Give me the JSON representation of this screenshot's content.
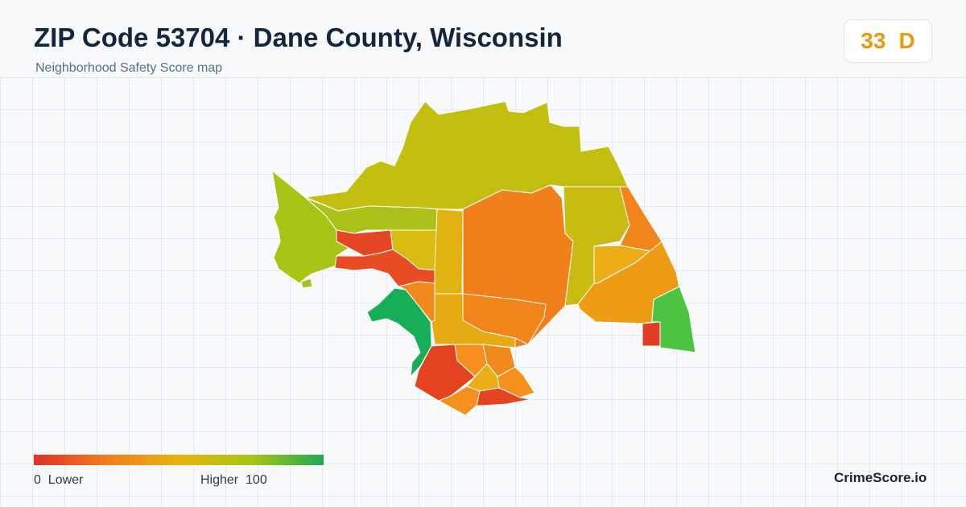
{
  "header": {
    "title": "ZIP Code 53704 · Dane County, Wisconsin",
    "subtitle": "Neighborhood Safety Score map"
  },
  "score": {
    "value": "33",
    "grade": "D",
    "color": "#e69b12"
  },
  "legend": {
    "low_value": "0",
    "low_label": "Lower",
    "high_label": "Higher",
    "high_value": "100",
    "colors": [
      "#e03127",
      "#f17d1c",
      "#e7b312",
      "#a9c414",
      "#1eab55"
    ]
  },
  "brand": "CrimeScore.io",
  "map": {
    "area_colors": {
      "north": "#c2bf10",
      "northwest": "#a8c416",
      "nw_strip": "#acc21a",
      "nw_small": "#9fc41e",
      "west_red": "#e54624",
      "west_mid": "#d9bb12",
      "center_yellow": "#e1b210",
      "central_orange": "#f17f1a",
      "east_yellow": "#c9bb12",
      "east_orange": "#f2841c",
      "east_light": "#ebae16",
      "east_lower": "#ef9c15",
      "southeast_green": "#4cc443",
      "southeast_red": "#e33c26",
      "lake_red": "#e84c22",
      "park_green": "#17ae58",
      "south_orange": "#f08a1b",
      "south_light": "#e6ab12",
      "south_red": "#e4431f",
      "south_mid": "#f5901f"
    }
  }
}
